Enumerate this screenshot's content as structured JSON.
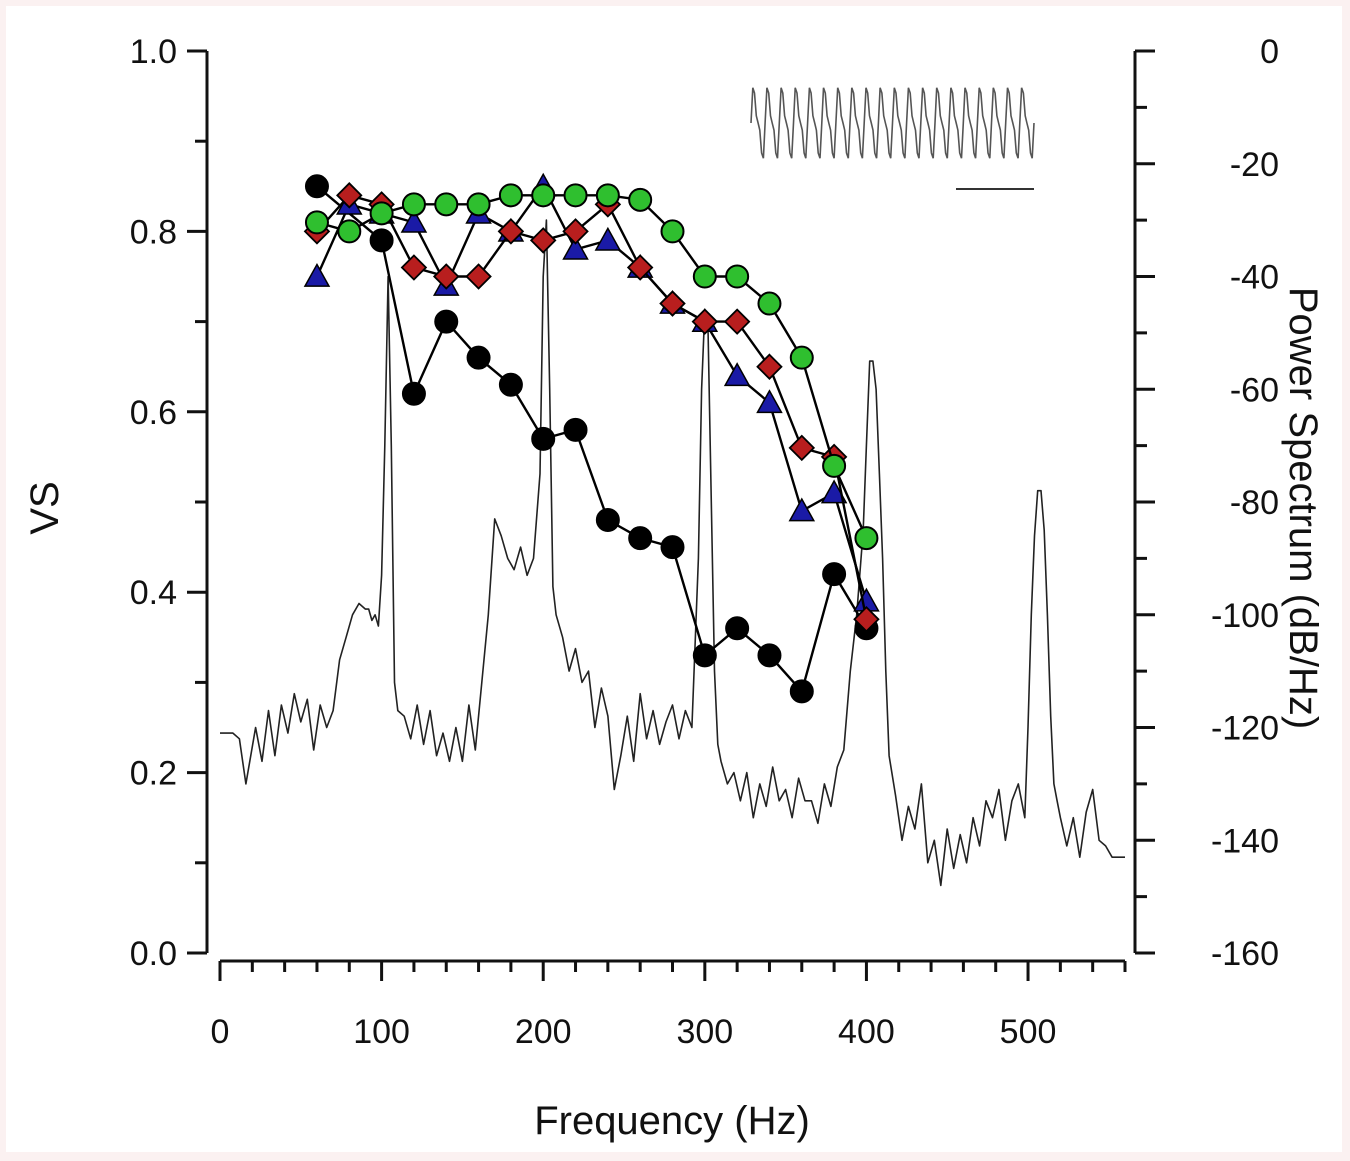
{
  "colors": {
    "background": "#ffffff",
    "page": "#fbf1f1",
    "black": "#111111",
    "spectrum": "#222222",
    "circle_black": "#000000",
    "diamond_red": "#b81e1e",
    "triangle_blue": "#1a1aa6",
    "circle_green": "#2fbf2f"
  },
  "chart_data": {
    "type": "line",
    "title": "",
    "xlabel": "Frequency (Hz)",
    "ylabel": "VS",
    "y2label": "Power Spectrum (dB/Hz)",
    "xlim": [
      0,
      560
    ],
    "ylim": [
      0,
      1.0
    ],
    "y2lim": [
      -160,
      0
    ],
    "x_ticks": [
      "0",
      "100",
      "200",
      "300",
      "400",
      "500"
    ],
    "y_ticks": [
      "0.0",
      "0.2",
      "0.4",
      "0.6",
      "0.8",
      "1.0"
    ],
    "y2_ticks": [
      "-160",
      "-140",
      "-120",
      "-100",
      "-80",
      "-60",
      "-40",
      "-20",
      "0"
    ],
    "grid": false,
    "series": [
      {
        "marker": "circle",
        "color": "#000000",
        "x": [
          60,
          100,
          120,
          140,
          160,
          180,
          200,
          220,
          240,
          260,
          280,
          300,
          320,
          340,
          360,
          380,
          400
        ],
        "y": [
          0.85,
          0.79,
          0.62,
          0.7,
          0.66,
          0.63,
          0.57,
          0.58,
          0.48,
          0.46,
          0.45,
          0.33,
          0.36,
          0.33,
          0.29,
          0.42,
          0.36
        ]
      },
      {
        "marker": "triangle",
        "color": "#1a1aa6",
        "x": [
          60,
          80,
          100,
          120,
          140,
          160,
          180,
          200,
          220,
          240,
          260,
          280,
          300,
          320,
          340,
          360,
          380,
          400
        ],
        "y": [
          0.75,
          0.83,
          0.82,
          0.81,
          0.74,
          0.82,
          0.8,
          0.85,
          0.78,
          0.79,
          0.76,
          0.72,
          0.7,
          0.64,
          0.61,
          0.49,
          0.51,
          0.39
        ]
      },
      {
        "marker": "diamond",
        "color": "#b81e1e",
        "x": [
          60,
          80,
          100,
          120,
          140,
          160,
          180,
          200,
          220,
          240,
          260,
          280,
          300,
          320,
          340,
          360,
          380,
          400
        ],
        "y": [
          0.8,
          0.84,
          0.83,
          0.76,
          0.75,
          0.75,
          0.8,
          0.79,
          0.8,
          0.83,
          0.76,
          0.72,
          0.7,
          0.7,
          0.65,
          0.56,
          0.55,
          0.37
        ]
      },
      {
        "marker": "circle",
        "color": "#2fbf2f",
        "x": [
          60,
          80,
          100,
          120,
          140,
          160,
          180,
          200,
          220,
          240,
          260,
          280,
          300,
          320,
          340,
          360,
          380,
          400
        ],
        "y": [
          0.81,
          0.8,
          0.82,
          0.83,
          0.83,
          0.83,
          0.84,
          0.84,
          0.84,
          0.84,
          0.835,
          0.8,
          0.75,
          0.75,
          0.72,
          0.66,
          0.54,
          0.46
        ]
      }
    ],
    "spectrum": {
      "axis": "right",
      "x": [
        0,
        8,
        12,
        16,
        22,
        26,
        30,
        34,
        38,
        42,
        46,
        50,
        54,
        58,
        62,
        66,
        70,
        74,
        78,
        82,
        86,
        90,
        92,
        94,
        96,
        98,
        100,
        102,
        104,
        106,
        108,
        110,
        114,
        118,
        122,
        126,
        130,
        134,
        138,
        142,
        146,
        150,
        154,
        158,
        162,
        166,
        170,
        174,
        178,
        182,
        186,
        190,
        194,
        198,
        200,
        202,
        204,
        206,
        208,
        212,
        216,
        220,
        224,
        228,
        232,
        236,
        240,
        244,
        248,
        252,
        256,
        260,
        264,
        268,
        272,
        276,
        280,
        284,
        288,
        292,
        296,
        298,
        300,
        302,
        304,
        306,
        308,
        310,
        314,
        318,
        322,
        326,
        330,
        334,
        338,
        342,
        346,
        350,
        354,
        358,
        362,
        366,
        370,
        374,
        378,
        382,
        386,
        390,
        394,
        398,
        400,
        402,
        404,
        406,
        408,
        410,
        412,
        414,
        418,
        422,
        426,
        430,
        434,
        438,
        442,
        446,
        450,
        454,
        458,
        462,
        466,
        470,
        474,
        478,
        482,
        486,
        490,
        494,
        498,
        500,
        502,
        504,
        506,
        508,
        510,
        512,
        514,
        516,
        518,
        520,
        524,
        528,
        532,
        536,
        540,
        544,
        548,
        552,
        556,
        560
      ],
      "y": [
        -121,
        -121,
        -122,
        -130,
        -120,
        -126,
        -117,
        -125,
        -116,
        -121,
        -114,
        -119,
        -115,
        -124,
        -116,
        -120,
        -117,
        -108,
        -104,
        -100,
        -98,
        -99,
        -99,
        -101,
        -100,
        -102,
        -93,
        -70,
        -40,
        -70,
        -112,
        -117,
        -118,
        -122,
        -116,
        -123,
        -117,
        -125,
        -121,
        -126,
        -120,
        -126,
        -116,
        -124,
        -112,
        -100,
        -83,
        -86,
        -90,
        -92,
        -88,
        -93,
        -90,
        -75,
        -40,
        -30,
        -60,
        -95,
        -100,
        -104,
        -110,
        -106,
        -112,
        -110,
        -120,
        -113,
        -118,
        -131,
        -125,
        -118,
        -126,
        -114,
        -122,
        -117,
        -123,
        -119,
        -116,
        -122,
        -117,
        -120,
        -90,
        -60,
        -46,
        -50,
        -80,
        -110,
        -123,
        -126,
        -130,
        -128,
        -133,
        -128,
        -136,
        -130,
        -134,
        -127,
        -133,
        -131,
        -136,
        -129,
        -133,
        -133,
        -137,
        -130,
        -134,
        -127,
        -124,
        -110,
        -100,
        -85,
        -70,
        -55,
        -55,
        -60,
        -75,
        -90,
        -110,
        -125,
        -132,
        -140,
        -134,
        -138,
        -130,
        -144,
        -140,
        -148,
        -138,
        -145,
        -139,
        -144,
        -136,
        -141,
        -133,
        -136,
        -131,
        -140,
        -133,
        -130,
        -136,
        -120,
        -100,
        -86,
        -78,
        -78,
        -85,
        -100,
        -118,
        -130,
        -133,
        -136,
        -141,
        -136,
        -143,
        -135,
        -131,
        -140,
        -141,
        -143,
        -143,
        -143
      ]
    },
    "inset": {
      "type": "waveform",
      "cycles": 20,
      "scale_bar": true
    }
  }
}
